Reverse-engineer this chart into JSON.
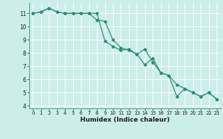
{
  "xlabel": "Humidex (Indice chaleur)",
  "ylabel": "",
  "bg_color": "#cceee8",
  "grid_color": "#ffffff",
  "line_color": "#2e8b7a",
  "x_line1": [
    0,
    1,
    2,
    3,
    4,
    5,
    6,
    7,
    8,
    9,
    10,
    11,
    12,
    13,
    14,
    15,
    16,
    17,
    18,
    19,
    20,
    21,
    22,
    23
  ],
  "y_line1": [
    11.0,
    11.1,
    11.4,
    11.1,
    11.0,
    11.0,
    11.0,
    11.0,
    10.5,
    10.4,
    9.0,
    8.4,
    8.2,
    7.9,
    8.3,
    7.3,
    6.5,
    6.3,
    4.7,
    5.3,
    5.0,
    4.7,
    5.0,
    4.5
  ],
  "x_line2": [
    0,
    1,
    2,
    3,
    4,
    5,
    6,
    7,
    8,
    9,
    10,
    11,
    12,
    13,
    14,
    15,
    16,
    17,
    18,
    19,
    20,
    21,
    22,
    23
  ],
  "y_line2": [
    11.0,
    11.1,
    11.4,
    11.1,
    11.0,
    11.0,
    11.0,
    11.0,
    11.0,
    8.9,
    8.5,
    8.2,
    8.3,
    7.9,
    7.1,
    7.6,
    6.5,
    6.3,
    5.6,
    5.3,
    5.0,
    4.7,
    5.0,
    4.5
  ],
  "xlim": [
    -0.5,
    23.5
  ],
  "ylim": [
    3.8,
    11.8
  ],
  "yticks": [
    4,
    5,
    6,
    7,
    8,
    9,
    10,
    11
  ],
  "xticks": [
    0,
    1,
    2,
    3,
    4,
    5,
    6,
    7,
    8,
    9,
    10,
    11,
    12,
    13,
    14,
    15,
    16,
    17,
    18,
    19,
    20,
    21,
    22,
    23
  ]
}
